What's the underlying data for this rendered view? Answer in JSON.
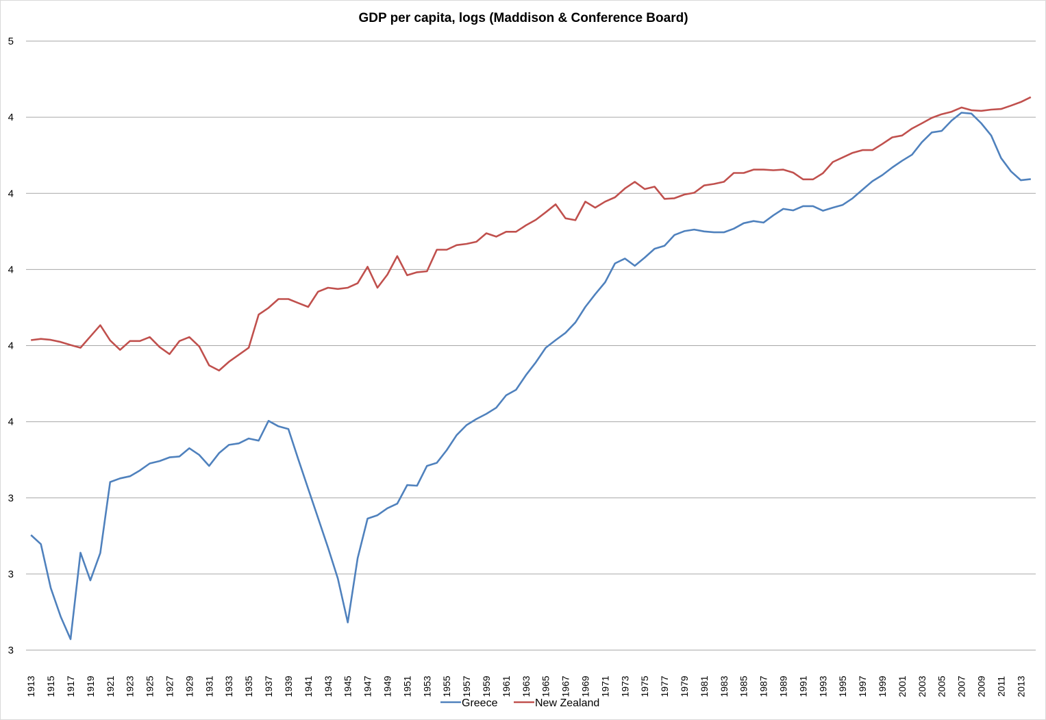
{
  "chart_data": {
    "type": "line",
    "title": "GDP per capita, logs  (Maddison & Conference Board)",
    "xlabel": "",
    "ylabel": "",
    "ylim": [
      3.0,
      5.0
    ],
    "grid": true,
    "legend_position": "bottom",
    "y_ticks": [
      {
        "value": 5.0,
        "label": "5"
      },
      {
        "value": 4.75,
        "label": "4"
      },
      {
        "value": 4.5,
        "label": "4"
      },
      {
        "value": 4.25,
        "label": "4"
      },
      {
        "value": 4.0,
        "label": "4"
      },
      {
        "value": 3.75,
        "label": "4"
      },
      {
        "value": 3.5,
        "label": "3"
      },
      {
        "value": 3.25,
        "label": "3"
      },
      {
        "value": 3.0,
        "label": "3"
      }
    ],
    "x": [
      1913,
      1914,
      1915,
      1916,
      1917,
      1918,
      1919,
      1920,
      1921,
      1922,
      1923,
      1924,
      1925,
      1926,
      1927,
      1928,
      1929,
      1930,
      1931,
      1932,
      1933,
      1934,
      1935,
      1936,
      1937,
      1938,
      1939,
      1940,
      1941,
      1942,
      1943,
      1944,
      1945,
      1946,
      1947,
      1948,
      1949,
      1950,
      1951,
      1952,
      1953,
      1954,
      1955,
      1956,
      1957,
      1958,
      1959,
      1960,
      1961,
      1962,
      1963,
      1964,
      1965,
      1966,
      1967,
      1968,
      1969,
      1970,
      1971,
      1972,
      1973,
      1974,
      1975,
      1976,
      1977,
      1978,
      1979,
      1980,
      1981,
      1982,
      1983,
      1984,
      1985,
      1986,
      1987,
      1988,
      1989,
      1990,
      1991,
      1992,
      1993,
      1994,
      1995,
      1996,
      1997,
      1998,
      1999,
      2000,
      2001,
      2002,
      2003,
      2004,
      2005,
      2006,
      2007,
      2008,
      2009,
      2010,
      2011,
      2012,
      2013,
      2014
    ],
    "x_tick_labels": [
      "1913",
      "1915",
      "1917",
      "1919",
      "1921",
      "1923",
      "1925",
      "1927",
      "1929",
      "1931",
      "1933",
      "1935",
      "1937",
      "1939",
      "1941",
      "1943",
      "1945",
      "1947",
      "1949",
      "1951",
      "1953",
      "1955",
      "1957",
      "1959",
      "1961",
      "1963",
      "1965",
      "1967",
      "1969",
      "1971",
      "1973",
      "1975",
      "1977",
      "1979",
      "1981",
      "1983",
      "1985",
      "1987",
      "1989",
      "1991",
      "1993",
      "1995",
      "1997",
      "1999",
      "2001",
      "2003",
      "2005",
      "2007",
      "2009",
      "2011",
      "2013"
    ],
    "series": [
      {
        "name": "Greece",
        "color": "#4f81bd",
        "values": [
          3.378,
          3.348,
          3.204,
          3.11,
          3.036,
          3.32,
          3.229,
          3.319,
          3.552,
          3.564,
          3.571,
          3.59,
          3.613,
          3.621,
          3.633,
          3.636,
          3.663,
          3.641,
          3.605,
          3.647,
          3.674,
          3.679,
          3.695,
          3.688,
          3.753,
          3.735,
          3.726,
          3.627,
          3.53,
          3.434,
          3.337,
          3.235,
          3.091,
          3.302,
          3.432,
          3.443,
          3.466,
          3.481,
          3.542,
          3.54,
          3.605,
          3.615,
          3.657,
          3.706,
          3.739,
          3.759,
          3.776,
          3.796,
          3.837,
          3.855,
          3.903,
          3.945,
          3.993,
          4.018,
          4.042,
          4.076,
          4.127,
          4.169,
          4.208,
          4.27,
          4.286,
          4.262,
          4.289,
          4.318,
          4.328,
          4.363,
          4.376,
          4.381,
          4.375,
          4.372,
          4.372,
          4.384,
          4.402,
          4.409,
          4.404,
          4.428,
          4.449,
          4.444,
          4.458,
          4.458,
          4.443,
          4.453,
          4.462,
          4.484,
          4.512,
          4.54,
          4.56,
          4.585,
          4.607,
          4.627,
          4.668,
          4.7,
          4.705,
          4.739,
          4.765,
          4.762,
          4.73,
          4.69,
          4.616,
          4.572,
          4.543,
          4.547
        ]
      },
      {
        "name": "New Zealand",
        "color": "#c0504d",
        "values": [
          4.018,
          4.022,
          4.019,
          4.012,
          4.002,
          3.993,
          4.03,
          4.067,
          4.017,
          3.986,
          4.015,
          4.015,
          4.028,
          3.995,
          3.972,
          4.015,
          4.028,
          3.997,
          3.935,
          3.918,
          3.947,
          3.97,
          3.993,
          4.102,
          4.124,
          4.153,
          4.153,
          4.14,
          4.127,
          4.177,
          4.19,
          4.186,
          4.19,
          4.205,
          4.259,
          4.19,
          4.233,
          4.294,
          4.231,
          4.241,
          4.244,
          4.315,
          4.315,
          4.33,
          4.334,
          4.341,
          4.369,
          4.358,
          4.374,
          4.374,
          4.395,
          4.413,
          4.438,
          4.464,
          4.418,
          4.412,
          4.473,
          4.453,
          4.473,
          4.487,
          4.516,
          4.538,
          4.514,
          4.522,
          4.482,
          4.484,
          4.496,
          4.502,
          4.526,
          4.531,
          4.538,
          4.567,
          4.567,
          4.578,
          4.578,
          4.576,
          4.578,
          4.568,
          4.546,
          4.546,
          4.566,
          4.603,
          4.618,
          4.633,
          4.642,
          4.642,
          4.662,
          4.684,
          4.69,
          4.713,
          4.73,
          4.748,
          4.76,
          4.768,
          4.782,
          4.773,
          4.771,
          4.775,
          4.777,
          4.788,
          4.8,
          4.816
        ]
      }
    ]
  }
}
